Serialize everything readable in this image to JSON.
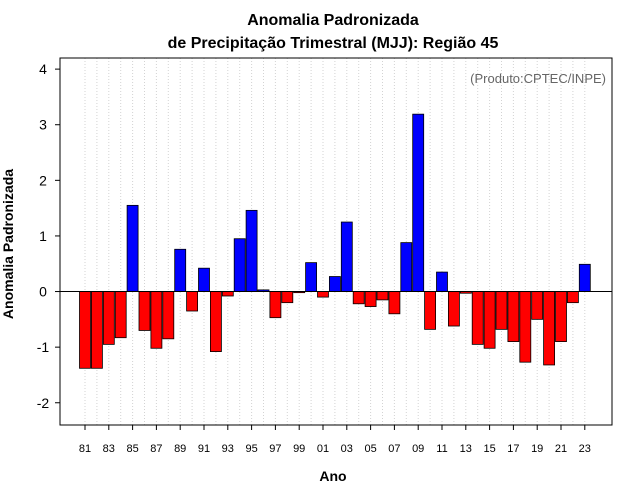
{
  "chart_data": {
    "type": "bar",
    "title_line1": "Anomalia Padronizada",
    "title_line2": "de Precipitação Trimestral (MJJ): Região 45",
    "xlabel": "Ano",
    "ylabel": "Anomalia Padronizada",
    "credit": "(Produto:CPTEC/INPE)",
    "ylim": [
      -2.4,
      4.2
    ],
    "yticks": [
      {
        "value": -2,
        "label": "-2"
      },
      {
        "value": -1,
        "label": "-1"
      },
      {
        "value": 0,
        "label": "0"
      },
      {
        "value": 1,
        "label": "1"
      },
      {
        "value": 2,
        "label": "2"
      },
      {
        "value": 3,
        "label": "3"
      },
      {
        "value": 4,
        "label": "4"
      }
    ],
    "categories": [
      "81",
      "82",
      "83",
      "84",
      "85",
      "86",
      "87",
      "88",
      "89",
      "90",
      "91",
      "92",
      "93",
      "94",
      "95",
      "96",
      "97",
      "98",
      "99",
      "00",
      "01",
      "02",
      "03",
      "04",
      "05",
      "06",
      "07",
      "08",
      "09",
      "10",
      "11",
      "12",
      "13",
      "14",
      "15",
      "16",
      "17",
      "18",
      "19",
      "20",
      "21",
      "22",
      "23"
    ],
    "xtick_labels": [
      "81",
      "83",
      "85",
      "87",
      "89",
      "91",
      "93",
      "95",
      "97",
      "99",
      "01",
      "03",
      "05",
      "07",
      "09",
      "11",
      "13",
      "15",
      "17",
      "19",
      "21",
      "23"
    ],
    "values": [
      -1.38,
      -1.38,
      -0.95,
      -0.83,
      1.55,
      -0.7,
      -1.02,
      -0.85,
      0.76,
      -0.35,
      0.42,
      -1.08,
      -0.08,
      0.95,
      1.46,
      0.03,
      -0.47,
      -0.2,
      -0.02,
      0.52,
      -0.1,
      0.27,
      1.25,
      -0.22,
      -0.27,
      -0.15,
      -0.4,
      0.88,
      3.19,
      -0.68,
      0.35,
      -0.62,
      -0.03,
      -0.95,
      -1.02,
      -0.68,
      -0.9,
      -1.27,
      -0.5,
      -1.32,
      -0.9,
      -0.2,
      0.49
    ],
    "colors": {
      "positive": "#0000ff",
      "negative": "#ff0000",
      "grid": "#d3d3d3",
      "axis": "#000000"
    }
  }
}
